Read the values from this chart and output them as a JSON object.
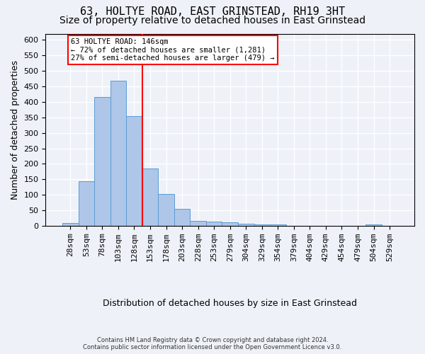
{
  "title": "63, HOLTYE ROAD, EAST GRINSTEAD, RH19 3HT",
  "subtitle": "Size of property relative to detached houses in East Grinstead",
  "xlabel": "Distribution of detached houses by size in East Grinstead",
  "ylabel": "Number of detached properties",
  "footer_line1": "Contains HM Land Registry data © Crown copyright and database right 2024.",
  "footer_line2": "Contains public sector information licensed under the Open Government Licence v3.0.",
  "bins": [
    "28sqm",
    "53sqm",
    "78sqm",
    "103sqm",
    "128sqm",
    "153sqm",
    "178sqm",
    "203sqm",
    "228sqm",
    "253sqm",
    "279sqm",
    "304sqm",
    "329sqm",
    "354sqm",
    "379sqm",
    "404sqm",
    "429sqm",
    "454sqm",
    "479sqm",
    "504sqm",
    "529sqm"
  ],
  "values": [
    10,
    143,
    416,
    468,
    355,
    185,
    103,
    54,
    16,
    14,
    11,
    6,
    5,
    5,
    1,
    0,
    0,
    0,
    0,
    5,
    0
  ],
  "bar_color": "#aec6e8",
  "bar_edge_color": "#5b9bd5",
  "redline_x": 4.5,
  "annotation_line1": "63 HOLTYE ROAD: 146sqm",
  "annotation_line2": "← 72% of detached houses are smaller (1,281)",
  "annotation_line3": "27% of semi-detached houses are larger (479) →",
  "annotation_box_color": "white",
  "annotation_box_edge_color": "red",
  "redline_color": "red",
  "ylim": [
    0,
    620
  ],
  "yticks": [
    0,
    50,
    100,
    150,
    200,
    250,
    300,
    350,
    400,
    450,
    500,
    550,
    600
  ],
  "background_color": "#eef2f8",
  "grid_color": "white",
  "title_fontsize": 11,
  "subtitle_fontsize": 10,
  "axis_label_fontsize": 9,
  "tick_fontsize": 8
}
